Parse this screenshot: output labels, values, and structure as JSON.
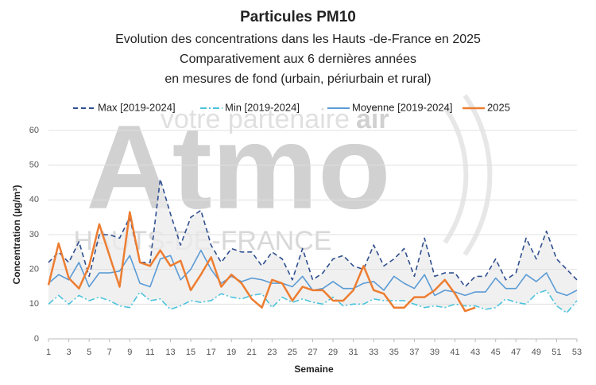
{
  "chart_data": {
    "type": "line",
    "title": "Particules PM10",
    "subtitle": [
      "Evolution des concentrations dans les Hauts -de-France en 2025",
      "Comparativement aux 6 dernières années",
      "en mesures de fond (urbain, périurbain et rural)"
    ],
    "watermark": [
      "Atmo",
      "votre partenaire",
      "air",
      "HAUTS-DE-FRANCE"
    ],
    "x_label": "Semaine",
    "y_label": "Concentration (µg/m³)",
    "x": [
      1,
      2,
      3,
      4,
      5,
      6,
      7,
      8,
      9,
      10,
      11,
      12,
      13,
      14,
      15,
      16,
      17,
      18,
      19,
      20,
      21,
      22,
      23,
      24,
      25,
      26,
      27,
      28,
      29,
      30,
      31,
      32,
      33,
      34,
      35,
      36,
      37,
      38,
      39,
      40,
      41,
      42,
      43,
      44,
      45,
      46,
      47,
      48,
      49,
      50,
      51,
      52,
      53
    ],
    "xlim": [
      1,
      53
    ],
    "xticks": [
      1,
      3,
      5,
      7,
      9,
      11,
      13,
      15,
      17,
      19,
      21,
      23,
      25,
      27,
      29,
      31,
      33,
      35,
      37,
      39,
      41,
      43,
      45,
      47,
      49,
      51,
      53
    ],
    "ylim": [
      0,
      60
    ],
    "yticks": [
      0,
      10,
      20,
      30,
      40,
      50,
      60
    ],
    "grid": true,
    "band_fill": "#ececec",
    "series": [
      {
        "name": "Max [2019-2024]",
        "color": "#2f4f8f",
        "style": "dashed",
        "values": [
          22,
          25,
          22,
          28,
          18,
          30,
          30,
          29,
          35,
          22,
          22,
          46,
          36,
          27,
          35,
          37,
          27,
          22,
          26,
          25,
          25,
          21,
          25,
          23,
          17,
          26,
          17,
          19,
          23,
          24,
          21,
          20,
          27,
          21,
          23,
          26,
          18,
          29,
          18,
          19,
          19,
          15,
          18,
          18,
          23,
          17,
          19,
          29,
          23,
          31,
          23,
          20,
          17
        ]
      },
      {
        "name": "Min [2019-2024]",
        "color": "#4cc3dc",
        "style": "dashdot",
        "values": [
          10,
          12.5,
          10,
          12.5,
          11,
          12,
          11,
          9.5,
          9,
          13.5,
          11,
          11.5,
          8.5,
          9.5,
          11,
          10.5,
          11,
          13,
          12,
          11.5,
          12.5,
          13,
          9,
          12,
          10.5,
          11.5,
          10.5,
          10,
          12,
          9.5,
          10,
          10,
          11.5,
          11,
          11,
          11,
          10,
          9,
          9.5,
          9,
          10,
          9.5,
          9.5,
          8.5,
          9,
          11.5,
          10.5,
          10,
          13,
          14,
          9.5,
          7.5,
          11
        ]
      },
      {
        "name": "Moyenne [2019-2024]",
        "color": "#5b9bd5",
        "style": "solid",
        "values": [
          16,
          18.5,
          17,
          22,
          15,
          19,
          19,
          19.5,
          24,
          16,
          15,
          23,
          24,
          17,
          20,
          25.5,
          20,
          16,
          18,
          16.5,
          17.5,
          17,
          16,
          16,
          15,
          18,
          14,
          14.5,
          16.5,
          14.5,
          14.5,
          16,
          16.5,
          14,
          18,
          16,
          14.5,
          18.5,
          12.5,
          14,
          13.5,
          12.5,
          13.5,
          13.5,
          17.5,
          14.5,
          14.5,
          18.5,
          16.5,
          19,
          13.5,
          12.5,
          14
        ]
      },
      {
        "name": "2025",
        "color": "#ed7d31",
        "style": "solid",
        "width": 2.5,
        "values": [
          15.5,
          27.5,
          17.5,
          14.5,
          21,
          33,
          24,
          15,
          36.5,
          22,
          21,
          25.5,
          21,
          22.5,
          14,
          18.5,
          23.5,
          15,
          18.5,
          16,
          11.5,
          9,
          17,
          16,
          11,
          15,
          14,
          14,
          11,
          11,
          14,
          21,
          14,
          13,
          9,
          9,
          12,
          12,
          14,
          17,
          13,
          8,
          9,
          null,
          null,
          null,
          null,
          null,
          null,
          null,
          null,
          null,
          null
        ]
      }
    ]
  }
}
